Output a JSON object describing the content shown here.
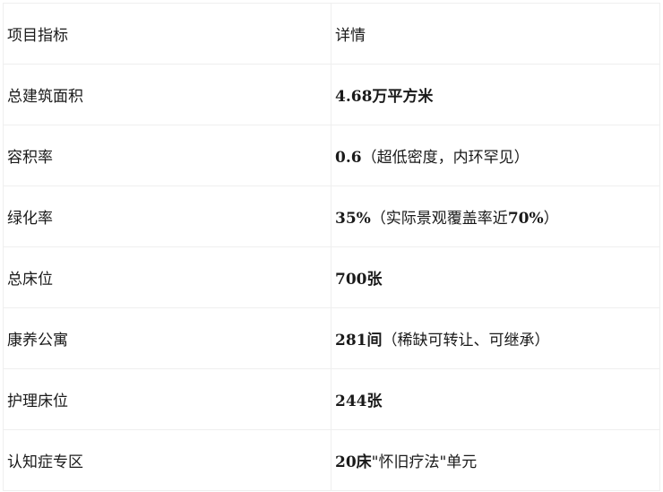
{
  "table": {
    "header": [
      "项目指标",
      "详情"
    ],
    "rows": [
      {
        "label": "总建筑面积",
        "detail": [
          {
            "text": "4.68万平方米",
            "bold": true
          }
        ]
      },
      {
        "label": "容积率",
        "detail": [
          {
            "text": "0.6",
            "bold": true
          },
          {
            "text": "（超低密度，内环罕见）",
            "bold": false
          }
        ]
      },
      {
        "label": "绿化率",
        "detail": [
          {
            "text": "35%",
            "bold": true
          },
          {
            "text": "（实际景观覆盖率近",
            "bold": false
          },
          {
            "text": "70%",
            "bold": true
          },
          {
            "text": "）",
            "bold": false
          }
        ]
      },
      {
        "label": "总床位",
        "detail": [
          {
            "text": "700张",
            "bold": true
          }
        ]
      },
      {
        "label": "康养公寓",
        "detail": [
          {
            "text": "281间",
            "bold": true
          },
          {
            "text": "（稀缺可转让、可继承）",
            "bold": false
          }
        ]
      },
      {
        "label": "护理床位",
        "detail": [
          {
            "text": "244张",
            "bold": true
          }
        ]
      },
      {
        "label": "认知症专区",
        "detail": [
          {
            "text": "20床",
            "bold": true
          },
          {
            "text": "\"怀旧疗法\"单元",
            "bold": false
          }
        ]
      }
    ]
  }
}
